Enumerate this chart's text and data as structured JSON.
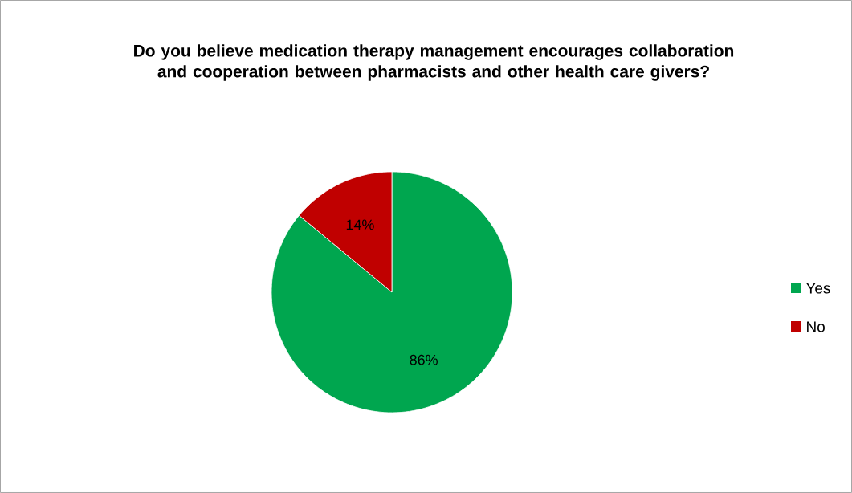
{
  "chart_data": {
    "type": "pie",
    "title": "Do you believe medication therapy management encourages collaboration and cooperation between pharmacists and other health care givers?",
    "categories": [
      "Yes",
      "No"
    ],
    "values": [
      86,
      14
    ],
    "value_labels": [
      "86%",
      "14%"
    ],
    "colors": [
      "#00a64f",
      "#c00000"
    ],
    "legend": "right"
  }
}
